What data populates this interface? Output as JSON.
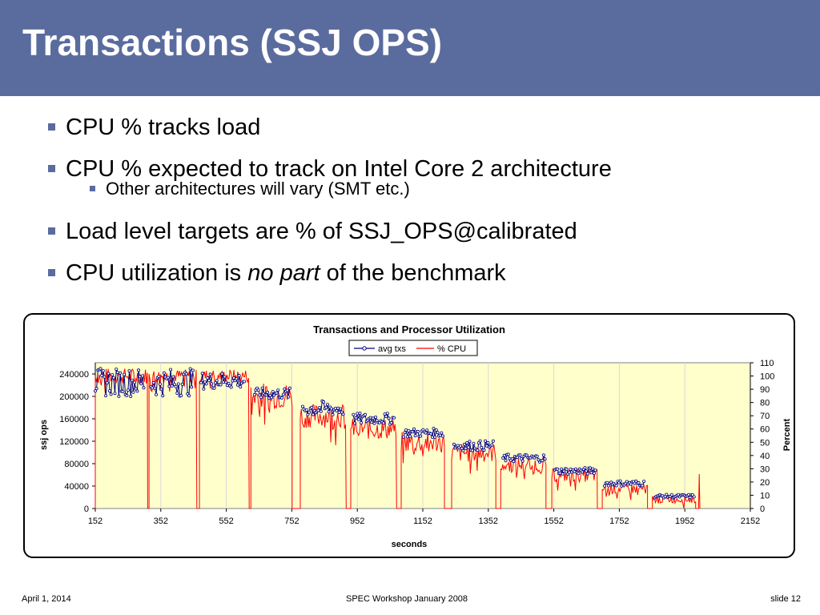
{
  "slide": {
    "title": "Transactions (SSJ OPS)",
    "bullets": [
      "CPU % tracks load",
      "CPU % expected to track on Intel Core 2 architecture",
      "Other architectures will vary (SMT etc.)",
      "Load level targets are % of SSJ_OPS@calibrated"
    ],
    "last_bullet": {
      "prefix": "CPU utilization is ",
      "emphasis": "no part",
      "suffix": " of the benchmark"
    }
  },
  "footer": {
    "date": "April 1, 2014",
    "event": "SPEC Workshop January 2008",
    "slide_number": "slide 12"
  },
  "colors": {
    "title_bar": "#5a6b9e",
    "plot_bg": "#ffffcc",
    "txs": "#000080",
    "cpu": "#ff0000"
  },
  "chart_data": {
    "type": "line",
    "title": "Transactions and Processor Utilization",
    "xlabel": "seconds",
    "ylabel": "ssj ops",
    "y2label": "Percent",
    "xlim": [
      152,
      2152
    ],
    "ylim": [
      0,
      260000
    ],
    "y2lim": [
      0,
      110
    ],
    "x_ticks": [
      152,
      352,
      552,
      752,
      952,
      1152,
      1352,
      1552,
      1752,
      1952,
      2152
    ],
    "y_ticks": [
      0,
      40000,
      80000,
      120000,
      160000,
      200000,
      240000
    ],
    "y2_ticks": [
      0,
      10,
      20,
      30,
      40,
      50,
      60,
      70,
      80,
      90,
      100,
      110
    ],
    "legend_position": "top-center",
    "grid": "vertical",
    "series": [
      {
        "name": "avg txs",
        "axis": "left",
        "segments": [
          {
            "x": [
              152,
              302
            ],
            "level": 225000,
            "spread": 25000
          },
          {
            "x": [
              322,
              452
            ],
            "level": 225000,
            "spread": 25000
          },
          {
            "x": [
              475,
              610
            ],
            "level": 228000,
            "spread": 15000
          },
          {
            "x": [
              638,
              746
            ],
            "level": 205000,
            "spread": 10000
          },
          {
            "x": [
              785,
              912
            ],
            "level": 178000,
            "spread": 14000
          },
          {
            "x": [
              940,
              1066
            ],
            "level": 160000,
            "spread": 10000
          },
          {
            "x": [
              1093,
              1215
            ],
            "level": 135000,
            "spread": 8000
          },
          {
            "x": [
              1247,
              1370
            ],
            "level": 112000,
            "spread": 9000
          },
          {
            "x": [
              1397,
              1525
            ],
            "level": 90000,
            "spread": 7000
          },
          {
            "x": [
              1555,
              1680
            ],
            "level": 67000,
            "spread": 6000
          },
          {
            "x": [
              1707,
              1830
            ],
            "level": 45000,
            "spread": 5000
          },
          {
            "x": [
              1860,
              1980
            ],
            "level": 22000,
            "spread": 3000
          }
        ]
      },
      {
        "name": "% CPU",
        "axis": "right",
        "segments": [
          {
            "x": [
              152,
              312
            ],
            "level": 100,
            "spread": 6
          },
          {
            "x": [
              316,
              462
            ],
            "level": 100,
            "spread": 5
          },
          {
            "x": [
              470,
              622
            ],
            "level": 100,
            "spread": 5
          },
          {
            "x": [
              627,
              753
            ],
            "level": 85,
            "spread": 10
          },
          {
            "x": [
              778,
              918
            ],
            "level": 70,
            "spread": 9
          },
          {
            "x": [
              932,
              1072
            ],
            "level": 60,
            "spread": 8
          },
          {
            "x": [
              1086,
              1218
            ],
            "level": 50,
            "spread": 8
          },
          {
            "x": [
              1240,
              1375
            ],
            "level": 42,
            "spread": 7
          },
          {
            "x": [
              1390,
              1528
            ],
            "level": 33,
            "spread": 6
          },
          {
            "x": [
              1546,
              1685
            ],
            "level": 25,
            "spread": 5
          },
          {
            "x": [
              1700,
              1838
            ],
            "level": 15,
            "spread": 4
          },
          {
            "x": [
              1853,
              1985
            ],
            "level": 7,
            "spread": 3
          }
        ],
        "end_spike": {
          "x": 1996,
          "value": 26
        }
      }
    ]
  }
}
